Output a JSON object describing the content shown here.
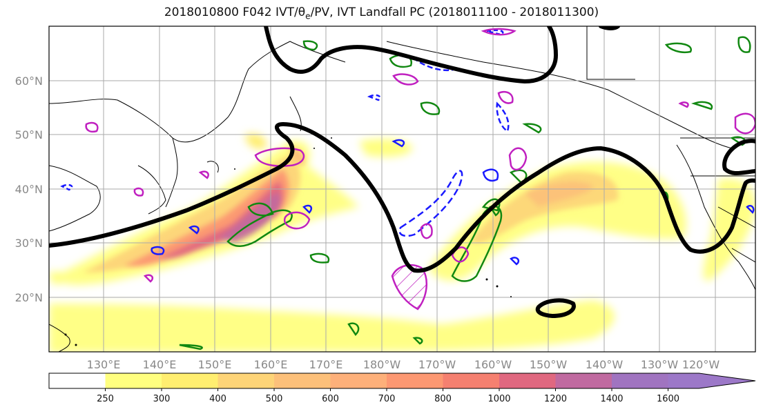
{
  "title_parts": {
    "prefix": "2018010800 F042 IVT/θ",
    "subscript": "e",
    "suffix": "/PV, IVT Landfall PC (2018011100 - 2018011300)"
  },
  "map": {
    "region": "North Pacific",
    "lat_labels": [
      "60°N",
      "50°N",
      "40°N",
      "30°N",
      "20°N"
    ],
    "lon_labels": [
      "130°E",
      "140°E",
      "150°E",
      "160°E",
      "170°E",
      "180°W",
      "170°W",
      "160°W",
      "150°W",
      "140°W",
      "130°W",
      "120°W"
    ],
    "colors": {
      "jet_contour": "#000000",
      "pv_contour": "#1a1aff",
      "theta_e_contour": "#118811",
      "magenta_contour": "#c020c0",
      "coastline": "#000000",
      "gridline": "#aaaaaa"
    }
  },
  "colorbar": {
    "ticks": [
      "250",
      "300",
      "400",
      "500",
      "600",
      "700",
      "800",
      "1000",
      "1200",
      "1400",
      "1600"
    ],
    "colors": [
      "#ffffff",
      "#ffff80",
      "#ffee70",
      "#fdd478",
      "#fcc07a",
      "#fdb07a",
      "#fc9872",
      "#f58070",
      "#e06880",
      "#c06aa0",
      "#a074c0",
      "#9c78c8"
    ]
  }
}
